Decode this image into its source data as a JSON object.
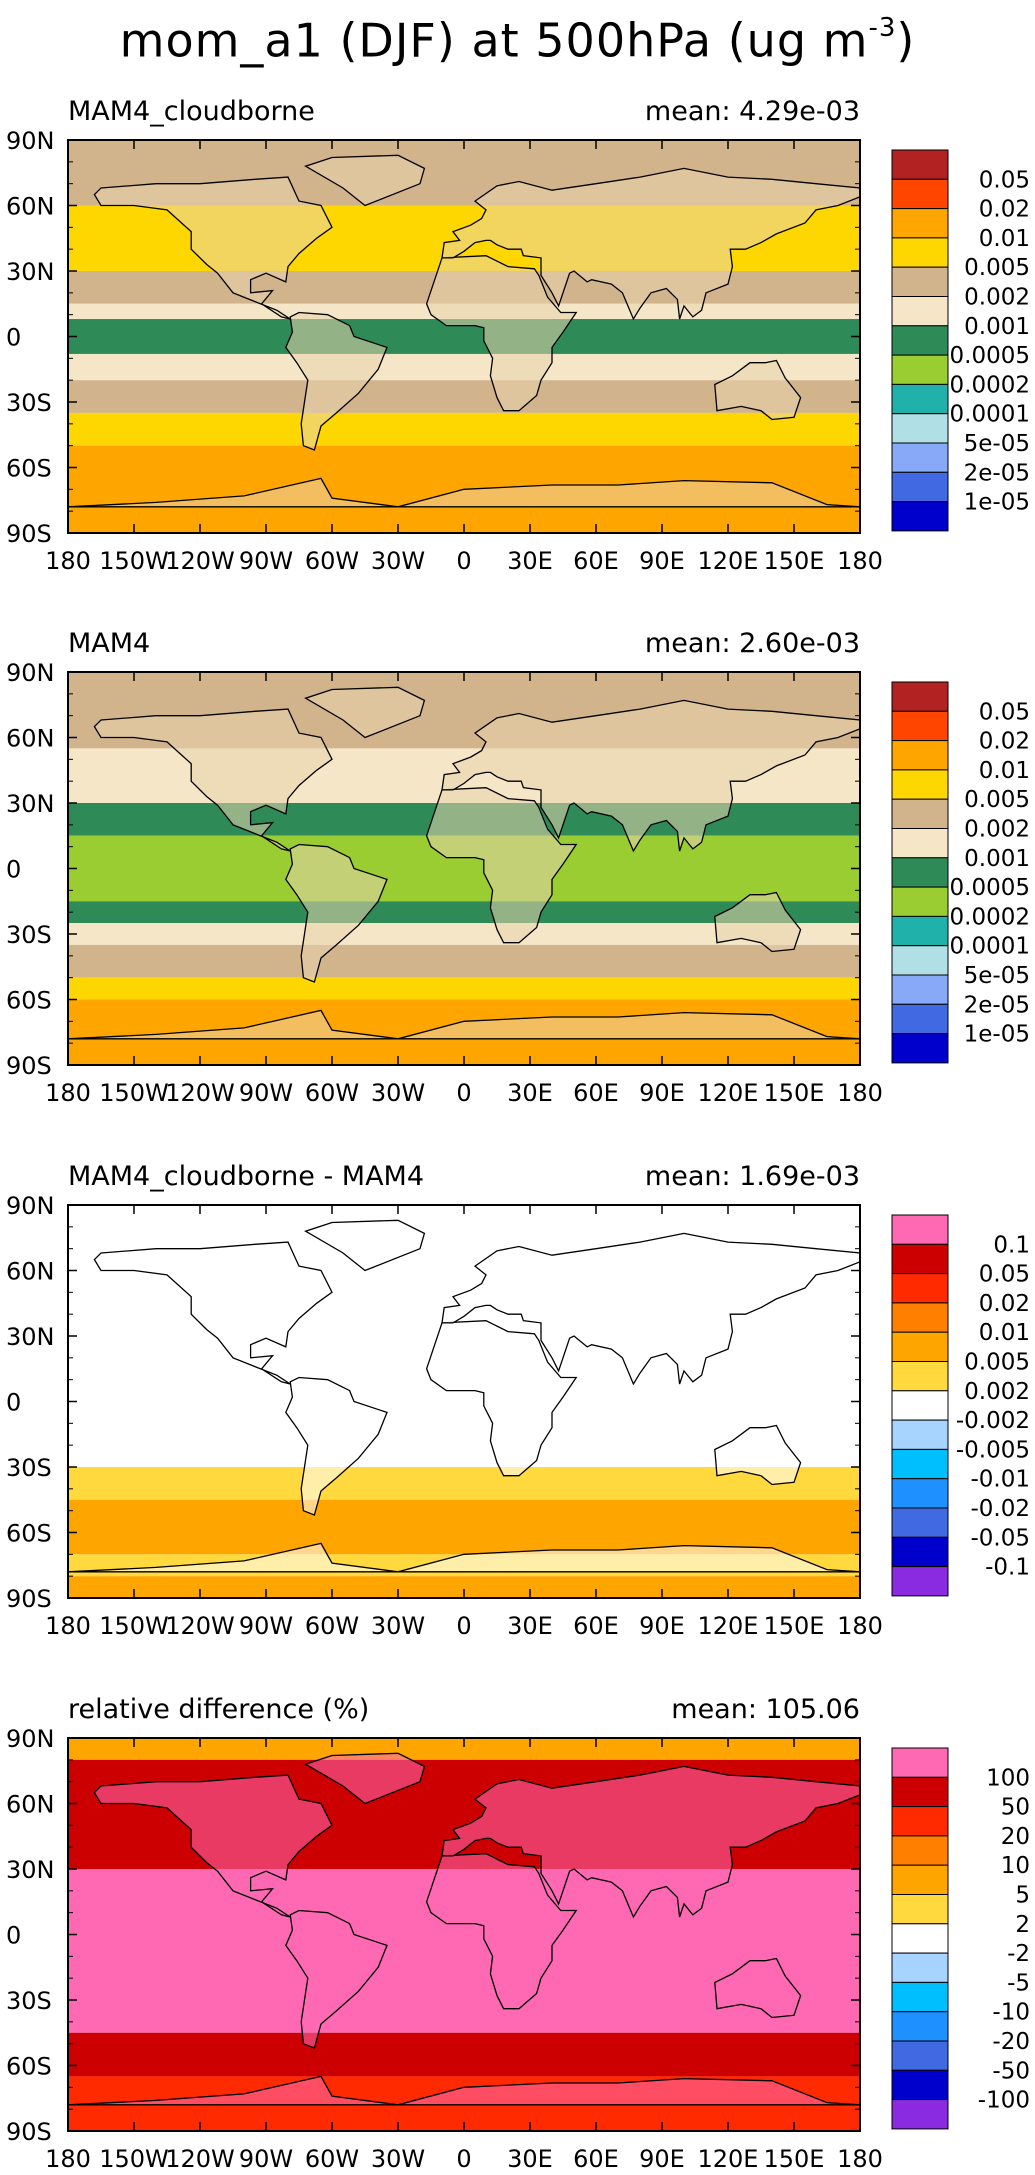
{
  "title": {
    "main": "mom_a1 (DJF) at 500hPa (ug m",
    "superscript": "-3",
    "close": ")"
  },
  "axes": {
    "lat_labels": [
      "90N",
      "60N",
      "30N",
      "0",
      "30S",
      "60S",
      "90S"
    ],
    "lon_labels": [
      "180",
      "150W",
      "120W",
      "90W",
      "60W",
      "30W",
      "0",
      "30E",
      "60E",
      "90E",
      "120E",
      "150E",
      "180"
    ]
  },
  "panels": [
    {
      "left_title": "MAM4_cloudborne",
      "mean_text": "mean: 4.29e-03",
      "map_fill": "#e8d4ad",
      "legend": {
        "labels": [
          "0.05",
          "0.02",
          "0.01",
          "0.005",
          "0.002",
          "0.001",
          "0.0005",
          "0.0002",
          "0.0001",
          "5e-05",
          "2e-05",
          "1e-05"
        ],
        "colors": [
          "#b22222",
          "#ff4500",
          "#ffa500",
          "#ffd700",
          "#d2b48c",
          "#f5e6c8",
          "#2e8b57",
          "#9acd32",
          "#20b2aa",
          "#b0e0e6",
          "#87a9f7",
          "#4169e1",
          "#0000cd"
        ]
      },
      "bands": [
        {
          "color": "#d2b48c",
          "lat": [
            90,
            60
          ]
        },
        {
          "color": "#ffd700",
          "lat": [
            60,
            30
          ]
        },
        {
          "color": "#d2b48c",
          "lat": [
            30,
            15
          ]
        },
        {
          "color": "#f5e6c8",
          "lat": [
            15,
            8
          ]
        },
        {
          "color": "#2e8b57",
          "lat": [
            8,
            -8
          ]
        },
        {
          "color": "#f5e6c8",
          "lat": [
            -8,
            -20
          ]
        },
        {
          "color": "#d2b48c",
          "lat": [
            -20,
            -35
          ]
        },
        {
          "color": "#ffd700",
          "lat": [
            -35,
            -50
          ]
        },
        {
          "color": "#ffa500",
          "lat": [
            -50,
            -90
          ]
        }
      ]
    },
    {
      "left_title": "MAM4",
      "mean_text": "mean: 2.60e-03",
      "map_fill": "#e8d4ad",
      "legend": {
        "labels": [
          "0.05",
          "0.02",
          "0.01",
          "0.005",
          "0.002",
          "0.001",
          "0.0005",
          "0.0002",
          "0.0001",
          "5e-05",
          "2e-05",
          "1e-05"
        ],
        "colors": [
          "#b22222",
          "#ff4500",
          "#ffa500",
          "#ffd700",
          "#d2b48c",
          "#f5e6c8",
          "#2e8b57",
          "#9acd32",
          "#20b2aa",
          "#b0e0e6",
          "#87a9f7",
          "#4169e1",
          "#0000cd"
        ]
      },
      "bands": [
        {
          "color": "#d2b48c",
          "lat": [
            90,
            55
          ]
        },
        {
          "color": "#f5e6c8",
          "lat": [
            55,
            30
          ]
        },
        {
          "color": "#2e8b57",
          "lat": [
            30,
            15
          ]
        },
        {
          "color": "#9acd32",
          "lat": [
            15,
            -15
          ]
        },
        {
          "color": "#2e8b57",
          "lat": [
            -15,
            -25
          ]
        },
        {
          "color": "#f5e6c8",
          "lat": [
            -25,
            -35
          ]
        },
        {
          "color": "#d2b48c",
          "lat": [
            -35,
            -50
          ]
        },
        {
          "color": "#ffd700",
          "lat": [
            -50,
            -60
          ]
        },
        {
          "color": "#ffa500",
          "lat": [
            -60,
            -90
          ]
        }
      ]
    },
    {
      "left_title": "MAM4_cloudborne - MAM4",
      "mean_text": "mean: 1.69e-03",
      "map_fill": "#ffffff",
      "legend": {
        "labels": [
          "0.1",
          "0.05",
          "0.02",
          "0.01",
          "0.005",
          "0.002",
          "-0.002",
          "-0.005",
          "-0.01",
          "-0.02",
          "-0.05",
          "-0.1"
        ],
        "colors": [
          "#ff69b4",
          "#cc0000",
          "#ff2a00",
          "#ff7f00",
          "#ffa500",
          "#ffd93d",
          "#ffffff",
          "#a6d3ff",
          "#00bfff",
          "#1e90ff",
          "#4169e1",
          "#0000cd",
          "#8a2be2"
        ]
      },
      "bands": [
        {
          "color": "#ffffff",
          "lat": [
            90,
            -30
          ]
        },
        {
          "color": "#ffd93d",
          "lat": [
            -30,
            -45
          ]
        },
        {
          "color": "#ffa500",
          "lat": [
            -45,
            -70
          ]
        },
        {
          "color": "#ffd93d",
          "lat": [
            -70,
            -80
          ]
        },
        {
          "color": "#ffa500",
          "lat": [
            -80,
            -90
          ]
        }
      ]
    },
    {
      "left_title": "relative difference (%)",
      "mean_text": "mean: 105.06",
      "map_fill": "#ff69b4",
      "legend": {
        "labels": [
          "100",
          "50",
          "20",
          "10",
          "5",
          "2",
          "-2",
          "-5",
          "-10",
          "-20",
          "-50",
          "-100"
        ],
        "colors": [
          "#ff69b4",
          "#cc0000",
          "#ff2a00",
          "#ff7f00",
          "#ffa500",
          "#ffd93d",
          "#ffffff",
          "#a6d3ff",
          "#00bfff",
          "#1e90ff",
          "#4169e1",
          "#0000cd",
          "#8a2be2"
        ]
      },
      "bands": [
        {
          "color": "#ffa500",
          "lat": [
            90,
            80
          ]
        },
        {
          "color": "#cc0000",
          "lat": [
            80,
            30
          ]
        },
        {
          "color": "#ff69b4",
          "lat": [
            30,
            -45
          ]
        },
        {
          "color": "#cc0000",
          "lat": [
            -45,
            -65
          ]
        },
        {
          "color": "#ff2a00",
          "lat": [
            -65,
            -90
          ]
        }
      ]
    }
  ]
}
